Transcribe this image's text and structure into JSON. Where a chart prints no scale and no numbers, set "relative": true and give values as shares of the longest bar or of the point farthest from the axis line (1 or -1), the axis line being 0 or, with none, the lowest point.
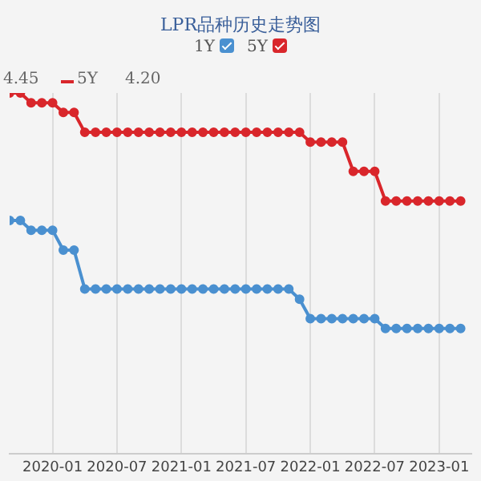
{
  "chart_data": {
    "type": "line",
    "title": "LPR品种历史走势图",
    "relative": true,
    "grid": "x",
    "legend": "top",
    "marker": "circle",
    "line_style": "solid",
    "annotations": [
      "4.45",
      "5Y",
      "4.20"
    ],
    "x": [
      "2019-09",
      "2019-10",
      "2019-11",
      "2019-12",
      "2020-01",
      "2020-02",
      "2020-03",
      "2020-04",
      "2020-05",
      "2020-06",
      "2020-07",
      "2020-08",
      "2020-09",
      "2020-10",
      "2020-11",
      "2020-12",
      "2021-01",
      "2021-02",
      "2021-03",
      "2021-04",
      "2021-05",
      "2021-06",
      "2021-07",
      "2021-08",
      "2021-09",
      "2021-10",
      "2021-11",
      "2021-12",
      "2022-01",
      "2022-02",
      "2022-03",
      "2022-04",
      "2022-05",
      "2022-06",
      "2022-07",
      "2022-08",
      "2022-09",
      "2022-10",
      "2022-11",
      "2022-12",
      "2023-01",
      "2023-02",
      "2023-03"
    ],
    "xlim": [
      "2019-09",
      "2023-04"
    ],
    "xticks": [
      {
        "value": "2020-01",
        "label": "2020-01"
      },
      {
        "value": "2020-07",
        "label": "2020-07"
      },
      {
        "value": "2021-01",
        "label": "2021-01"
      },
      {
        "value": "2021-07",
        "label": "2021-07"
      },
      {
        "value": "2022-01",
        "label": "2022-01"
      },
      {
        "value": "2022-07",
        "label": "2022-07"
      },
      {
        "value": "2023-01",
        "label": "2023-01"
      }
    ],
    "series": [
      {
        "name": "1Y",
        "color": "#4a90d0",
        "values": [
          0.647,
          0.647,
          0.62,
          0.62,
          0.62,
          0.565,
          0.565,
          0.457,
          0.457,
          0.457,
          0.457,
          0.457,
          0.457,
          0.457,
          0.457,
          0.457,
          0.457,
          0.457,
          0.457,
          0.457,
          0.457,
          0.457,
          0.457,
          0.457,
          0.457,
          0.457,
          0.457,
          0.429,
          0.375,
          0.375,
          0.375,
          0.375,
          0.375,
          0.375,
          0.375,
          0.348,
          0.348,
          0.348,
          0.348,
          0.348,
          0.348,
          0.348,
          0.348
        ]
      },
      {
        "name": "5Y",
        "color": "#d9262b",
        "values": [
          1,
          1,
          0.973,
          0.973,
          0.973,
          0.946,
          0.946,
          0.891,
          0.891,
          0.891,
          0.891,
          0.891,
          0.891,
          0.891,
          0.891,
          0.891,
          0.891,
          0.891,
          0.891,
          0.891,
          0.891,
          0.891,
          0.891,
          0.891,
          0.891,
          0.891,
          0.891,
          0.891,
          0.864,
          0.864,
          0.864,
          0.864,
          0.783,
          0.783,
          0.783,
          0.701,
          0.701,
          0.701,
          0.701,
          0.701,
          0.701,
          0.701,
          0.701
        ]
      }
    ]
  }
}
